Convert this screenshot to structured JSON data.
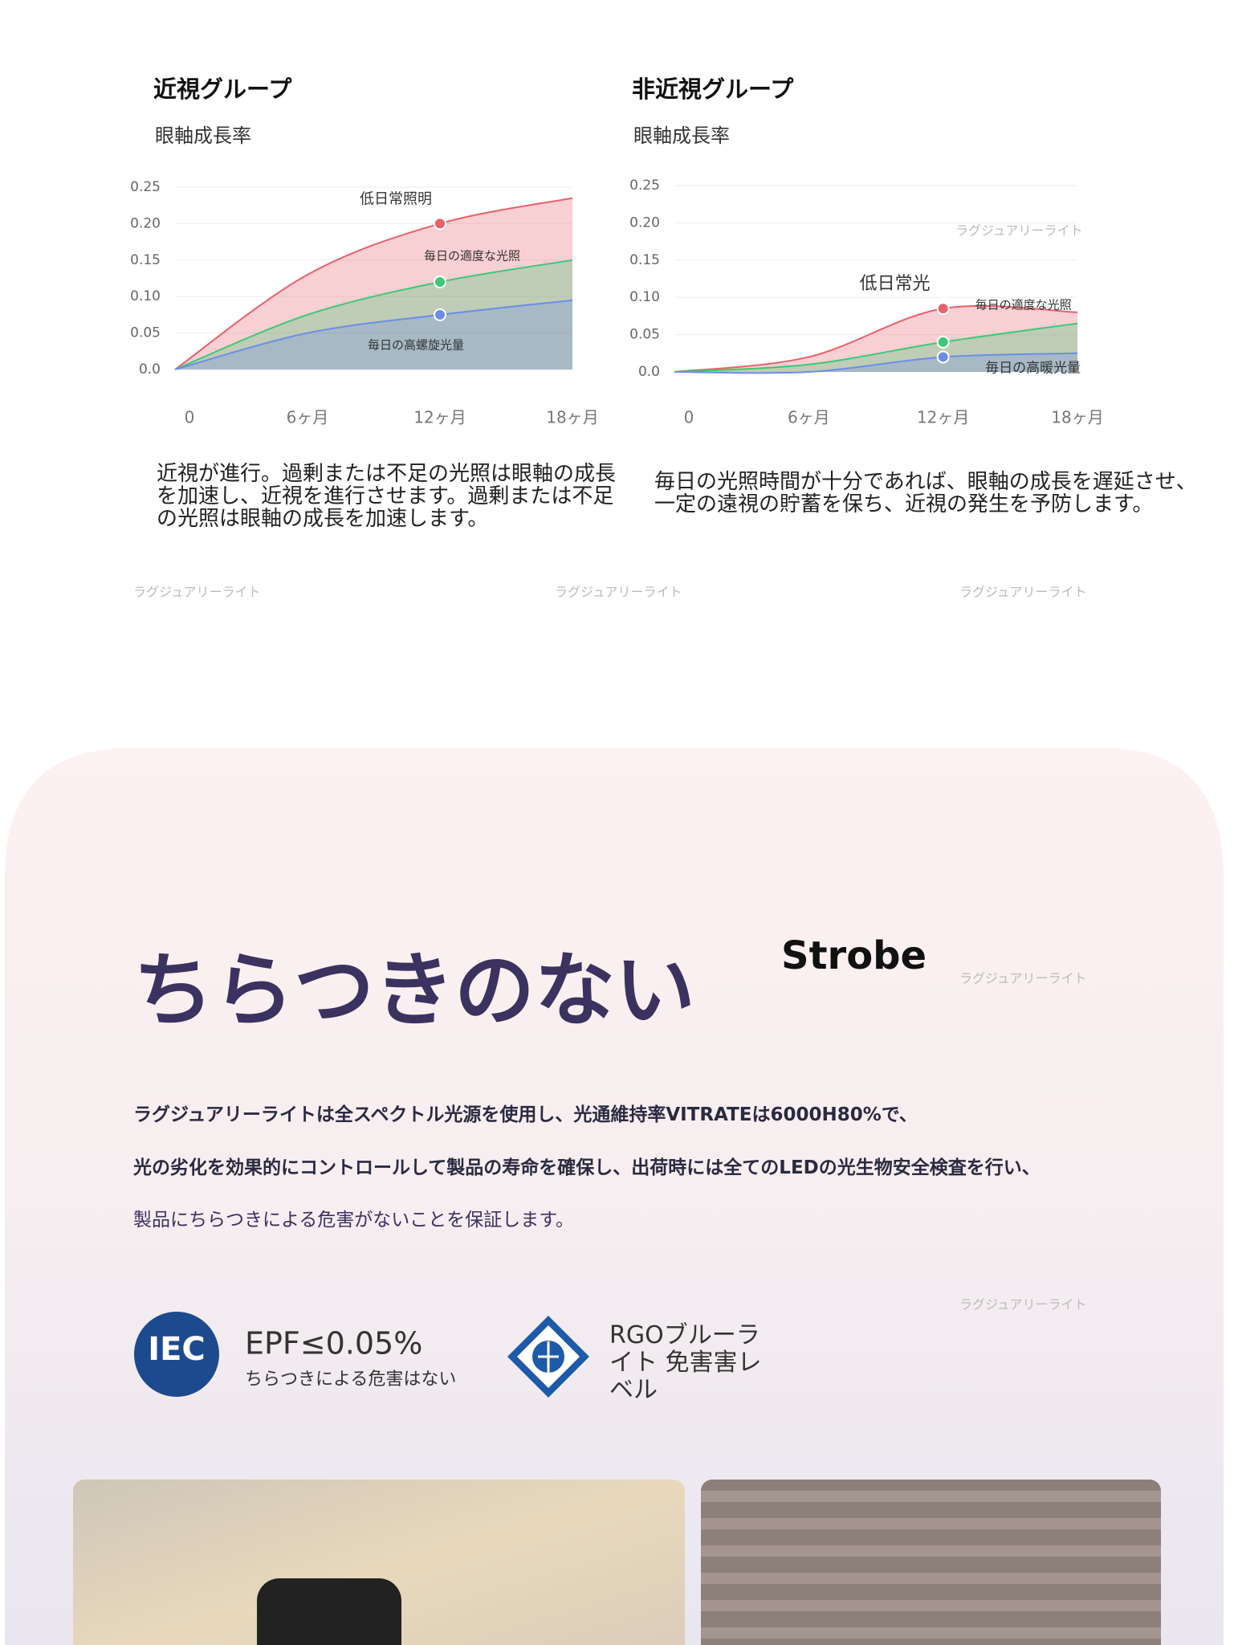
{
  "chart_data": [
    {
      "type": "area",
      "title": "近視グループ",
      "subtitle": "眼軸成長率",
      "categories": [
        "0",
        "6ヶ月",
        "12ヶ月",
        "18ヶ月"
      ],
      "series": [
        {
          "name": "低日常照明",
          "color": "#e8606a",
          "values": [
            0,
            0.13,
            0.2,
            0.235
          ]
        },
        {
          "name": "毎日の適度な光照",
          "color": "#3cc878",
          "values": [
            0,
            0.075,
            0.12,
            0.15
          ]
        },
        {
          "name": "毎日の高螺旋光量",
          "color": "#6c8ee8",
          "values": [
            0,
            0.05,
            0.075,
            0.095
          ]
        }
      ],
      "ylim": [
        0,
        0.25
      ],
      "yticks": [
        {
          "value": 0,
          "label": "0.0"
        },
        0.05,
        {
          "value": 0.1,
          "label": "0.10"
        },
        0.15,
        {
          "value": 0.2,
          "label": "0.20"
        },
        0.25
      ],
      "grid": true
    },
    {
      "type": "area",
      "title": "非近視グループ",
      "subtitle": "眼軸成長率",
      "categories": [
        "0",
        "6ヶ月",
        "12ヶ月",
        "18ヶ月"
      ],
      "series": [
        {
          "name": "低日常光",
          "color": "#e8606a",
          "values": [
            0,
            0.02,
            0.085,
            0.08
          ]
        },
        {
          "name": "毎日の適度な光照",
          "color": "#3cc878",
          "values": [
            0,
            0.01,
            0.04,
            0.065
          ]
        },
        {
          "name": "毎日の高暖光量",
          "color": "#6c8ee8",
          "values": [
            0,
            0,
            0.02,
            0.025
          ]
        }
      ],
      "ylim": [
        0,
        0.25
      ],
      "yticks": [
        {
          "value": 0,
          "label": "0.0"
        },
        0.05,
        {
          "value": 0.1,
          "label": "0.10"
        },
        0.15,
        {
          "value": 0.2,
          "label": "0.20"
        },
        0.25
      ],
      "grid": true
    }
  ],
  "captions": [
    "近視が進行。過剰または不足の光照は眼軸の成長を加速し、近視を進行させます。過剰または不足の光照は眼軸の成長を加速します。",
    "毎日の光照時間が十分であれば、眼軸の成長を遅延させ、一定の遠視の貯蓄を保ち、近視の発生を予防します。"
  ],
  "watermark": "ラグジュアリーライト",
  "flicker": {
    "heading": "ちらつきのない",
    "logo": "Strobe",
    "paragraph": [
      "ラグジュアリーライトは全スペクトル光源を使用し、光通維持率VITRATEは6000H80%で、",
      "光の劣化を効果的にコントロールして製品の寿命を確保し、出荷時には全てのLEDの光生物安全検査を行い、",
      "製品にちらつきによる危害がないことを保証します。"
    ],
    "features": [
      {
        "icon": "IEC",
        "title": "EPF≤0.05%",
        "sub": "ちらつきによる危害はない"
      },
      {
        "title": "RGOブルーライト 免害害レベル"
      }
    ]
  }
}
